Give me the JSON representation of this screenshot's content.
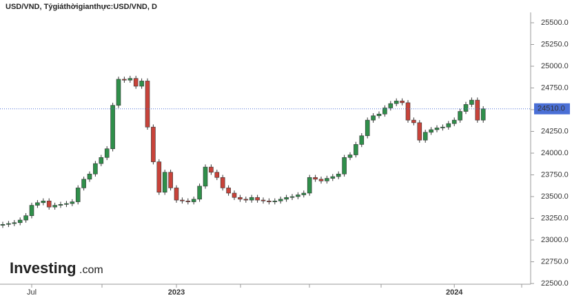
{
  "chart_data": {
    "type": "candlestick",
    "title": "USD/VND, Tỷgiáthờigianthực:USD/VND, D",
    "categories": [
      null,
      null,
      null,
      null,
      null,
      "Jul",
      null,
      null,
      null,
      null,
      null,
      null,
      null,
      null,
      null,
      null,
      null,
      null,
      null,
      null,
      null,
      null,
      null,
      null,
      null,
      null,
      null,
      null,
      null,
      null,
      "2023",
      null,
      null,
      null,
      null,
      null,
      null,
      null,
      null,
      null,
      null,
      null,
      null,
      null,
      null,
      null,
      null,
      null,
      null,
      null,
      null,
      null,
      null,
      null,
      null,
      null,
      null,
      null,
      null,
      null,
      null,
      null,
      null,
      null,
      null,
      null,
      null,
      null,
      null,
      null,
      null,
      null,
      null,
      null,
      null,
      null,
      null,
      null,
      "2024",
      null,
      null,
      null,
      null,
      null
    ],
    "open": [
      23170,
      23180,
      23190,
      23200,
      23230,
      23280,
      23400,
      23430,
      23450,
      23380,
      23400,
      23410,
      23420,
      23440,
      23600,
      23700,
      23760,
      23880,
      23950,
      24050,
      24550,
      24850,
      24840,
      24860,
      24770,
      24830,
      24300,
      23900,
      23550,
      23780,
      23600,
      23460,
      23450,
      23440,
      23470,
      23620,
      23840,
      23780,
      23720,
      23600,
      23540,
      23490,
      23470,
      23460,
      23490,
      23460,
      23450,
      23440,
      23450,
      23470,
      23490,
      23500,
      23520,
      23540,
      23720,
      23700,
      23680,
      23710,
      23730,
      23760,
      23950,
      23980,
      24100,
      24200,
      24380,
      24430,
      24450,
      24520,
      24570,
      24600,
      24580,
      24380,
      24350,
      24150,
      24240,
      24270,
      24290,
      24300,
      24340,
      24380,
      24480,
      24560,
      24610,
      24380
    ],
    "high": [
      23210,
      23220,
      23230,
      23260,
      23310,
      23430,
      23460,
      23480,
      23480,
      23430,
      23440,
      23450,
      23470,
      23630,
      23730,
      23790,
      23910,
      23980,
      24080,
      24580,
      24880,
      24880,
      24890,
      24890,
      24860,
      24860,
      24330,
      23930,
      23810,
      23810,
      23630,
      23490,
      23480,
      23500,
      23650,
      23870,
      23870,
      23810,
      23750,
      23630,
      23570,
      23520,
      23500,
      23520,
      23520,
      23490,
      23480,
      23480,
      23500,
      23520,
      23530,
      23550,
      23570,
      23750,
      23750,
      23730,
      23740,
      23760,
      23790,
      23980,
      24010,
      24130,
      24230,
      24410,
      24460,
      24480,
      24550,
      24600,
      24630,
      24630,
      24610,
      24410,
      24380,
      24270,
      24300,
      24320,
      24330,
      24370,
      24410,
      24510,
      24590,
      24640,
      24640,
      24540
    ],
    "low": [
      23140,
      23150,
      23160,
      23170,
      23200,
      23250,
      23370,
      23400,
      23350,
      23350,
      23370,
      23380,
      23390,
      23410,
      23570,
      23670,
      23730,
      23850,
      23920,
      24020,
      24520,
      24810,
      24810,
      24740,
      24740,
      24270,
      23870,
      23520,
      23520,
      23570,
      23430,
      23420,
      23410,
      23410,
      23440,
      23590,
      23750,
      23690,
      23570,
      23510,
      23460,
      23440,
      23430,
      23430,
      23430,
      23420,
      23410,
      23410,
      23420,
      23440,
      23460,
      23470,
      23490,
      23510,
      23670,
      23650,
      23650,
      23680,
      23700,
      23730,
      23920,
      23950,
      24070,
      24170,
      24350,
      24400,
      24420,
      24490,
      24540,
      24550,
      24350,
      24320,
      24120,
      24120,
      24210,
      24240,
      24260,
      24270,
      24310,
      24350,
      24450,
      24530,
      24350,
      24350
    ],
    "close": [
      23180,
      23190,
      23200,
      23230,
      23280,
      23400,
      23430,
      23450,
      23380,
      23400,
      23410,
      23420,
      23440,
      23600,
      23700,
      23760,
      23880,
      23950,
      24050,
      24550,
      24850,
      24840,
      24860,
      24770,
      24830,
      24300,
      23900,
      23550,
      23780,
      23600,
      23460,
      23450,
      23440,
      23470,
      23620,
      23840,
      23780,
      23720,
      23600,
      23540,
      23490,
      23470,
      23460,
      23490,
      23460,
      23450,
      23440,
      23450,
      23470,
      23490,
      23500,
      23520,
      23540,
      23720,
      23700,
      23680,
      23710,
      23730,
      23760,
      23950,
      23980,
      24100,
      24200,
      24380,
      24430,
      24450,
      24520,
      24570,
      24600,
      24580,
      24380,
      24350,
      24150,
      24240,
      24270,
      24290,
      24300,
      24340,
      24380,
      24480,
      24560,
      24610,
      24380,
      24510
    ],
    "up_color": "#2f8f4a",
    "down_color": "#c8433a",
    "ylim": [
      22500,
      25500
    ],
    "yticks": [
      {
        "value": 22500,
        "label": "22500.0"
      },
      {
        "value": 22750,
        "label": "22750.0"
      },
      {
        "value": 23000,
        "label": "23000.0"
      },
      {
        "value": 23250,
        "label": "23250.0"
      },
      {
        "value": 23500,
        "label": "23500.0"
      },
      {
        "value": 23750,
        "label": "23750.0"
      },
      {
        "value": 24000,
        "label": "24000.0"
      },
      {
        "value": 24250,
        "label": "24250.0"
      },
      {
        "value": 24500,
        "label": "24500.0"
      },
      {
        "value": 24750,
        "label": "24750.0"
      },
      {
        "value": 25000,
        "label": "25000.0"
      },
      {
        "value": 25250,
        "label": "25250.0"
      },
      {
        "value": 25500,
        "label": "25500.0"
      }
    ],
    "last_price": {
      "value": 24510,
      "label": "24510.0",
      "color": "#4a6fd6"
    },
    "watermark": {
      "brand": "Investing",
      "suffix": ".com"
    }
  }
}
